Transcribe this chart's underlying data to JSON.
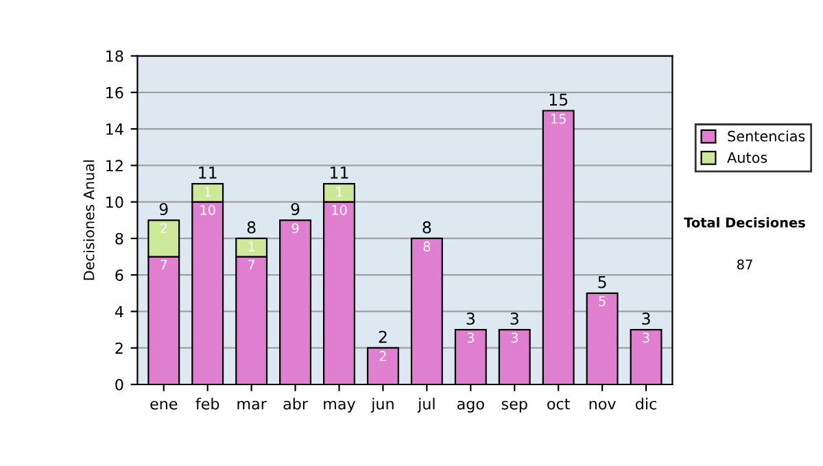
{
  "chart_data": {
    "type": "bar",
    "stacked": true,
    "ylabel": "Decisiones Anual",
    "categories": [
      "ene",
      "feb",
      "mar",
      "abr",
      "may",
      "jun",
      "jul",
      "ago",
      "sep",
      "oct",
      "nov",
      "dic"
    ],
    "series": [
      {
        "name": "Sentencias",
        "color": "#e07fcf",
        "values": [
          7,
          10,
          7,
          9,
          10,
          2,
          8,
          3,
          3,
          15,
          5,
          3
        ],
        "value_labels": [
          "7",
          "10",
          "7",
          "9",
          "10",
          "2",
          "8",
          "3",
          "3",
          "15",
          "5",
          "3"
        ]
      },
      {
        "name": "Autos",
        "color": "#cce99a",
        "values": [
          2,
          1,
          1,
          null,
          1,
          null,
          null,
          null,
          null,
          null,
          null,
          null
        ],
        "value_labels": [
          "2",
          "1",
          "1",
          null,
          "1",
          null,
          null,
          null,
          null,
          null,
          null,
          null
        ]
      }
    ],
    "totals": [
      "9",
      "11",
      "8",
      "9",
      "11",
      "2",
      "8",
      "3",
      "3",
      "15",
      "5",
      "3"
    ],
    "ylim": [
      0,
      18
    ],
    "yticks": [
      0,
      2,
      4,
      6,
      8,
      10,
      12,
      14,
      16,
      18
    ],
    "grid": "y",
    "legend": "right",
    "annotations": [
      "Total Decisiones",
      "87"
    ]
  }
}
